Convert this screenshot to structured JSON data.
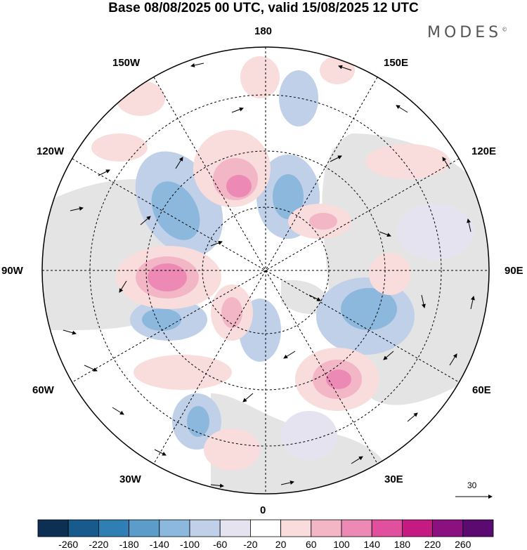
{
  "title": "Base 08/08/2025 00 UTC, valid 15/08/2025 12 UTC",
  "brand": {
    "name": "MODES",
    "mark": "©"
  },
  "longitude_labels": {
    "top": "180",
    "bottom": "0",
    "left": "90W",
    "right": "90E",
    "upper_left_1": "150W",
    "upper_left_2": "120W",
    "upper_right_1": "150E",
    "upper_right_2": "120E",
    "lower_left_1": "60W",
    "lower_left_2": "30W",
    "lower_right_1": "60E",
    "lower_right_2": "30E"
  },
  "vector_scale": {
    "value": "30"
  },
  "colorbar": {
    "colors": [
      "#0d2f52",
      "#175a8c",
      "#2f7fb5",
      "#5b9ccb",
      "#8db8dd",
      "#bfd0e8",
      "#e6e3f0",
      "#ffffff",
      "#f9dcdc",
      "#f3b6c7",
      "#ec8ab5",
      "#e1509f",
      "#c41a82",
      "#8c1180",
      "#5a0a70"
    ],
    "labels": [
      "-260",
      "-220",
      "-180",
      "-140",
      "-100",
      "-60",
      "-20",
      "20",
      "60",
      "100",
      "140",
      "180",
      "220",
      "260"
    ]
  }
}
